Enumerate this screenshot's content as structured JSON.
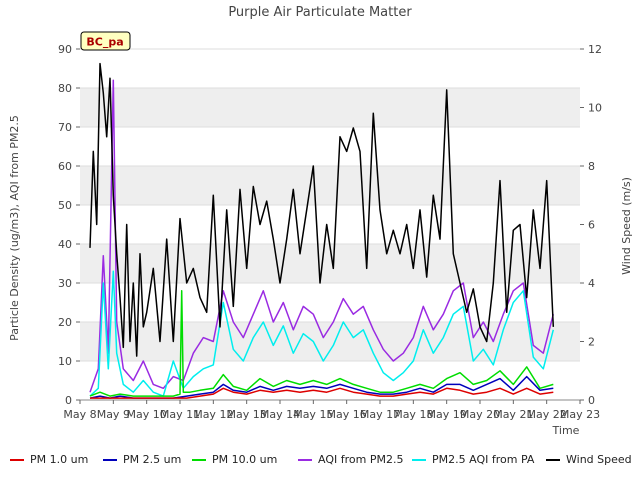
{
  "chart_data": {
    "type": "line",
    "title": "Purple Air Particulate Matter",
    "xlabel": "Time",
    "ylabel": "Particle Density (ug/m3), AQI from PM2.5",
    "y2label": "Wind Speed (m/s)",
    "site_label": "BC_pa",
    "x_ticks": [
      "May 8",
      "May 9",
      "May 10",
      "May 11",
      "May 12",
      "May 13",
      "May 14",
      "May 15",
      "May 16",
      "May 17",
      "May 18",
      "May 19",
      "May 20",
      "May 21",
      "May 22",
      "May 23"
    ],
    "x_range": [
      8,
      23
    ],
    "ylim": [
      0,
      90
    ],
    "y_ticks": [
      0,
      10,
      20,
      30,
      40,
      50,
      60,
      70,
      80,
      90
    ],
    "y2lim": [
      0,
      12
    ],
    "y2_ticks": [
      0,
      2,
      4,
      6,
      8,
      10,
      12
    ],
    "background_bands": true,
    "colors": {
      "pm1": "#dd0000",
      "pm25": "#0000bb",
      "pm10": "#00dd00",
      "aqi": "#9a2be2",
      "pa_aqi": "#00eeee",
      "wind": "#000000"
    },
    "series": [
      {
        "name": "PM 1.0 um",
        "key": "pm1",
        "axis": "left",
        "x": [
          8.3,
          8.6,
          8.9,
          9.2,
          9.6,
          10,
          10.4,
          10.8,
          11.2,
          11.6,
          12,
          12.3,
          12.6,
          13,
          13.4,
          13.8,
          14.2,
          14.6,
          15,
          15.4,
          15.8,
          16.2,
          16.6,
          17,
          17.4,
          17.8,
          18.2,
          18.6,
          19,
          19.4,
          19.8,
          20.2,
          20.6,
          21,
          21.4,
          21.8,
          22.2
        ],
        "y": [
          0.5,
          0.5,
          0.5,
          0.5,
          0.5,
          0.5,
          0.5,
          0.5,
          0.5,
          1,
          1.5,
          3,
          2,
          1.5,
          2.5,
          2,
          2.5,
          2,
          2.5,
          2,
          3,
          2,
          1.5,
          1,
          1,
          1.5,
          2,
          1.5,
          3,
          2.5,
          1.5,
          2,
          3,
          1.5,
          3,
          1.5,
          2
        ]
      },
      {
        "name": "PM 2.5 um",
        "key": "pm25",
        "axis": "left",
        "x": [
          8.3,
          8.6,
          8.9,
          9.2,
          9.6,
          10,
          10.4,
          10.8,
          11.2,
          11.6,
          12,
          12.3,
          12.6,
          13,
          13.4,
          13.8,
          14.2,
          14.6,
          15,
          15.4,
          15.8,
          16.2,
          16.6,
          17,
          17.4,
          17.8,
          18.2,
          18.6,
          19,
          19.4,
          19.8,
          20.2,
          20.6,
          21,
          21.4,
          21.8,
          22.2
        ],
        "y": [
          0.5,
          1,
          0.5,
          1,
          0.5,
          0.5,
          0.5,
          0.5,
          1,
          1.5,
          2,
          4,
          2.5,
          2,
          3.5,
          2.5,
          3.5,
          3,
          3.5,
          3,
          4,
          3,
          2,
          1.5,
          1.5,
          2,
          3,
          2,
          4,
          4,
          2.5,
          4,
          5.5,
          2.5,
          6,
          2.5,
          3
        ]
      },
      {
        "name": "PM 10.0 um",
        "key": "pm10",
        "axis": "left",
        "x": [
          8.3,
          8.6,
          8.9,
          9.2,
          9.6,
          10,
          10.4,
          10.8,
          11,
          11.05,
          11.1,
          11.3,
          11.6,
          12,
          12.3,
          12.6,
          13,
          13.4,
          13.8,
          14.2,
          14.6,
          15,
          15.4,
          15.8,
          16.2,
          16.6,
          17,
          17.4,
          17.8,
          18.2,
          18.6,
          19,
          19.4,
          19.8,
          20.2,
          20.6,
          21,
          21.4,
          21.8,
          22.2
        ],
        "y": [
          1,
          2,
          1,
          1.5,
          1,
          1,
          1,
          1,
          1.5,
          28,
          2,
          2,
          2.5,
          3,
          6.5,
          3.5,
          2.5,
          5.5,
          3.5,
          5,
          4,
          5,
          4,
          5.5,
          4,
          3,
          2,
          2,
          3,
          4,
          3,
          5.5,
          7,
          4,
          5,
          7.5,
          4,
          8.5,
          3,
          4
        ]
      },
      {
        "name": "AQI from PM2.5",
        "key": "aqi",
        "axis": "left",
        "x": [
          8.3,
          8.55,
          8.7,
          8.85,
          9.0,
          9.1,
          9.3,
          9.6,
          9.9,
          10.2,
          10.5,
          10.8,
          11.1,
          11.4,
          11.7,
          12.0,
          12.3,
          12.6,
          12.9,
          13.2,
          13.5,
          13.8,
          14.1,
          14.4,
          14.7,
          15.0,
          15.3,
          15.6,
          15.9,
          16.2,
          16.5,
          16.8,
          17.1,
          17.4,
          17.7,
          18.0,
          18.3,
          18.6,
          18.9,
          19.2,
          19.5,
          19.8,
          20.1,
          20.4,
          20.7,
          21.0,
          21.3,
          21.6,
          21.9,
          22.2
        ],
        "y": [
          2,
          8,
          37,
          12,
          82,
          20,
          8,
          5,
          10,
          4,
          3,
          6,
          5,
          12,
          16,
          15,
          28,
          20,
          16,
          22,
          28,
          20,
          25,
          18,
          24,
          22,
          16,
          20,
          26,
          22,
          24,
          18,
          13,
          10,
          12,
          16,
          24,
          18,
          22,
          28,
          30,
          16,
          20,
          15,
          22,
          28,
          30,
          14,
          12,
          22
        ]
      },
      {
        "name": "PM2.5 AQI from PA",
        "key": "pa_aqi",
        "axis": "left",
        "x": [
          8.3,
          8.55,
          8.7,
          8.85,
          9.0,
          9.1,
          9.3,
          9.6,
          9.9,
          10.2,
          10.5,
          10.8,
          11.1,
          11.4,
          11.7,
          12.0,
          12.3,
          12.6,
          12.9,
          13.2,
          13.5,
          13.8,
          14.1,
          14.4,
          14.7,
          15.0,
          15.3,
          15.6,
          15.9,
          16.2,
          16.5,
          16.8,
          17.1,
          17.4,
          17.7,
          18.0,
          18.3,
          18.6,
          18.9,
          19.2,
          19.5,
          19.8,
          20.1,
          20.4,
          20.7,
          21.0,
          21.3,
          21.6,
          21.9,
          22.2
        ],
        "y": [
          1,
          3,
          30,
          8,
          33,
          12,
          4,
          2,
          5,
          2,
          1,
          10,
          3,
          6,
          8,
          9,
          25,
          13,
          10,
          16,
          20,
          14,
          19,
          12,
          17,
          15,
          10,
          14,
          20,
          16,
          18,
          12,
          7,
          5,
          7,
          10,
          18,
          12,
          16,
          22,
          24,
          10,
          13,
          9,
          18,
          25,
          28,
          11,
          8,
          18
        ]
      },
      {
        "name": "Wind Speed",
        "key": "wind",
        "axis": "right",
        "x": [
          8.3,
          8.4,
          8.5,
          8.6,
          8.7,
          8.8,
          8.9,
          9.0,
          9.1,
          9.2,
          9.3,
          9.4,
          9.5,
          9.6,
          9.7,
          9.8,
          9.9,
          10.0,
          10.2,
          10.4,
          10.6,
          10.8,
          11.0,
          11.2,
          11.4,
          11.6,
          11.8,
          12.0,
          12.2,
          12.4,
          12.6,
          12.8,
          13.0,
          13.2,
          13.4,
          13.6,
          13.8,
          14.0,
          14.2,
          14.4,
          14.6,
          14.8,
          15.0,
          15.2,
          15.4,
          15.6,
          15.8,
          16.0,
          16.2,
          16.4,
          16.6,
          16.8,
          17.0,
          17.2,
          17.4,
          17.6,
          17.8,
          18.0,
          18.2,
          18.4,
          18.6,
          18.8,
          19.0,
          19.2,
          19.4,
          19.6,
          19.8,
          20.0,
          20.2,
          20.4,
          20.6,
          20.8,
          21.0,
          21.2,
          21.4,
          21.6,
          21.8,
          22.0,
          22.2
        ],
        "y": [
          5.2,
          8.5,
          6,
          11.5,
          10.5,
          9,
          11,
          7,
          5,
          3.5,
          1.8,
          6,
          2,
          4,
          1.5,
          5,
          2.5,
          3,
          4.5,
          2,
          5.5,
          2,
          6.2,
          4,
          4.5,
          3.5,
          3,
          7,
          2.5,
          6.5,
          3.2,
          7.2,
          4.5,
          7.3,
          6,
          6.8,
          5.5,
          4,
          5.5,
          7.2,
          5,
          6.5,
          8,
          4,
          6,
          4.5,
          9,
          8.5,
          9.3,
          8.5,
          4.5,
          9.8,
          6.5,
          5,
          5.8,
          5,
          6,
          4.5,
          6.5,
          4.2,
          7,
          5.5,
          10.6,
          5,
          4,
          3,
          3.8,
          2.5,
          2,
          4,
          7.5,
          3,
          5.8,
          6,
          3.5,
          6.5,
          4.5,
          7.5,
          2.5
        ]
      }
    ]
  }
}
